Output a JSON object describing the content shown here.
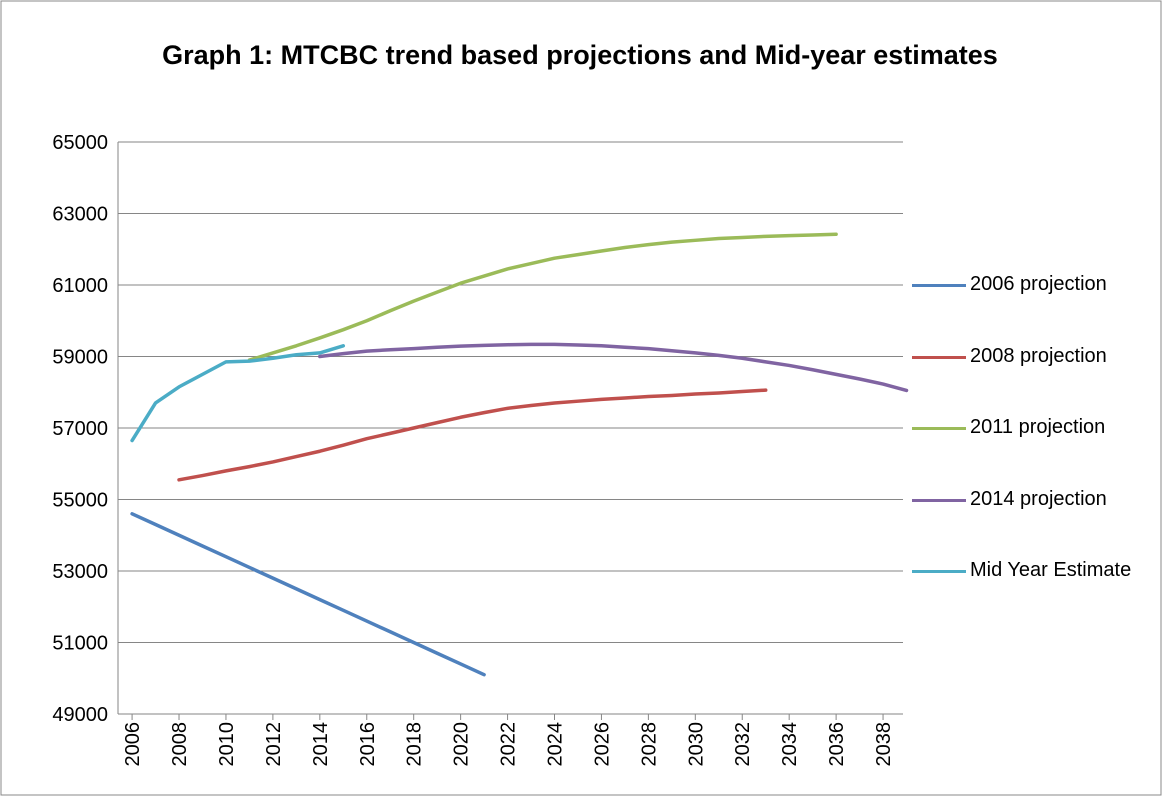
{
  "chart_data": {
    "type": "line",
    "title": "Graph 1: MTCBC trend based projections and Mid-year estimates",
    "x": [
      2006,
      2007,
      2008,
      2009,
      2010,
      2011,
      2012,
      2013,
      2014,
      2015,
      2016,
      2017,
      2018,
      2019,
      2020,
      2021,
      2022,
      2023,
      2024,
      2025,
      2026,
      2027,
      2028,
      2029,
      2030,
      2031,
      2032,
      2033,
      2034,
      2035,
      2036,
      2037,
      2038,
      2039
    ],
    "series": [
      {
        "name": "2006 projection",
        "color": "#4f81bd",
        "values": [
          54600,
          54300,
          54000,
          53700,
          53400,
          53100,
          52800,
          52500,
          52200,
          51900,
          51600,
          51300,
          51000,
          50700,
          50400,
          50100,
          null,
          null,
          null,
          null,
          null,
          null,
          null,
          null,
          null,
          null,
          null,
          null,
          null,
          null,
          null,
          null,
          null,
          null
        ]
      },
      {
        "name": "2008 projection",
        "color": "#c0504d",
        "values": [
          null,
          null,
          55550,
          55670,
          55800,
          55920,
          56050,
          56200,
          56350,
          56520,
          56700,
          56850,
          57000,
          57150,
          57300,
          57430,
          57550,
          57630,
          57700,
          57750,
          57800,
          57840,
          57880,
          57910,
          57950,
          57980,
          58020,
          58060,
          null,
          null,
          null,
          null,
          null,
          null
        ]
      },
      {
        "name": "2011 projection",
        "color": "#9bbb59",
        "values": [
          null,
          null,
          null,
          null,
          null,
          58900,
          59100,
          59300,
          59520,
          59750,
          60000,
          60280,
          60550,
          60800,
          61050,
          61250,
          61450,
          61600,
          61750,
          61850,
          61950,
          62050,
          62130,
          62200,
          62250,
          62300,
          62330,
          62360,
          62380,
          62400,
          62420,
          null,
          null,
          null
        ]
      },
      {
        "name": "2014 projection",
        "color": "#8064a2",
        "values": [
          null,
          null,
          null,
          null,
          null,
          null,
          null,
          null,
          59000,
          59080,
          59150,
          59190,
          59220,
          59260,
          59290,
          59310,
          59330,
          59340,
          59340,
          59320,
          59300,
          59260,
          59220,
          59160,
          59100,
          59030,
          58950,
          58850,
          58750,
          58630,
          58500,
          58370,
          58230,
          58050
        ]
      },
      {
        "name": "Mid Year Estimate",
        "color": "#4bacc6",
        "values": [
          56650,
          57700,
          58150,
          58500,
          58850,
          58870,
          58950,
          59050,
          59100,
          59300,
          null,
          null,
          null,
          null,
          null,
          null,
          null,
          null,
          null,
          null,
          null,
          null,
          null,
          null,
          null,
          null,
          null,
          null,
          null,
          null,
          null,
          null,
          null,
          null
        ]
      }
    ],
    "xlim": [
      2005.4,
      2038.85
    ],
    "xticks": [
      2006,
      2008,
      2010,
      2012,
      2014,
      2016,
      2018,
      2020,
      2022,
      2024,
      2026,
      2028,
      2030,
      2032,
      2034,
      2036,
      2038
    ],
    "ylim": [
      49000,
      65000
    ],
    "yticks": [
      49000,
      51000,
      53000,
      55000,
      57000,
      59000,
      61000,
      63000,
      65000
    ],
    "grid": true,
    "legend": "right"
  }
}
